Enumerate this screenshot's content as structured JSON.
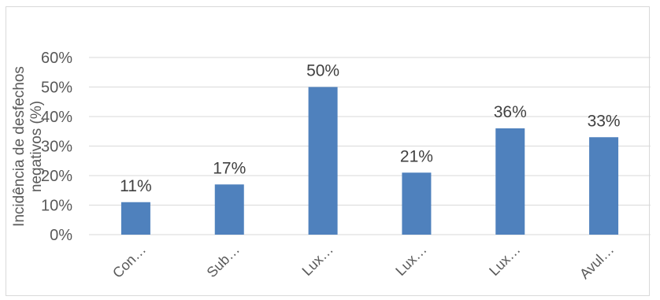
{
  "chart_data": {
    "type": "bar",
    "categories": [
      "Con…",
      "Sub…",
      "Lux…",
      "Lux…",
      "Lux…",
      "Avul…"
    ],
    "values": [
      11,
      17,
      50,
      21,
      36,
      33
    ],
    "data_labels": [
      "11%",
      "17%",
      "50%",
      "21%",
      "36%",
      "33%"
    ],
    "yticks": [
      {
        "value": 0,
        "label": "0%"
      },
      {
        "value": 10,
        "label": "10%"
      },
      {
        "value": 20,
        "label": "20%"
      },
      {
        "value": 30,
        "label": "30%"
      },
      {
        "value": 40,
        "label": "40%"
      },
      {
        "value": 50,
        "label": "50%"
      },
      {
        "value": 60,
        "label": "60%"
      }
    ],
    "ylabel_lines": [
      "Incidência de desfechos",
      "negativos (%)"
    ],
    "ylim": [
      0,
      60
    ],
    "grid": true,
    "bar_color": "#4f81bd",
    "gridline_color": "#d9d9d9"
  }
}
